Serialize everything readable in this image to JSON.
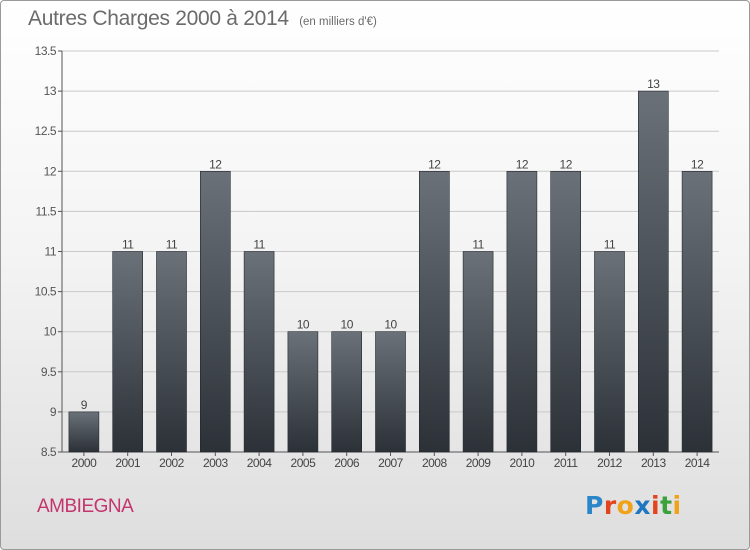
{
  "header": {
    "title": "Autres Charges 2000 à 2014",
    "subtitle": "(en milliers d'€)"
  },
  "footer": {
    "commune": "AMBIEGNA",
    "brand": "Proxiti"
  },
  "colors": {
    "bar_top": "#6b7178",
    "bar_bottom": "#2b3137",
    "title": "#6b6b6b",
    "commune": "#c4356c"
  },
  "chart_data": {
    "type": "bar",
    "title": "Autres Charges 2000 à 2014",
    "subtitle": "(en milliers d'€)",
    "categories": [
      "2000",
      "2001",
      "2002",
      "2003",
      "2004",
      "2005",
      "2006",
      "2007",
      "2008",
      "2009",
      "2010",
      "2011",
      "2012",
      "2013",
      "2014"
    ],
    "values": [
      9,
      11,
      11,
      12,
      11,
      10,
      10,
      10,
      12,
      11,
      12,
      12,
      11,
      13,
      12
    ],
    "value_labels": [
      "9",
      "11",
      "11",
      "12",
      "11",
      "10",
      "10",
      "10",
      "12",
      "11",
      "12",
      "12",
      "11",
      "13",
      "12"
    ],
    "yticks": [
      "8.5",
      "9",
      "9.5",
      "10",
      "10.5",
      "11",
      "11.5",
      "12",
      "12.5",
      "13",
      "13.5"
    ],
    "ylim": [
      8.5,
      13.5
    ],
    "xlabel": "",
    "ylabel": "",
    "grid": true
  }
}
